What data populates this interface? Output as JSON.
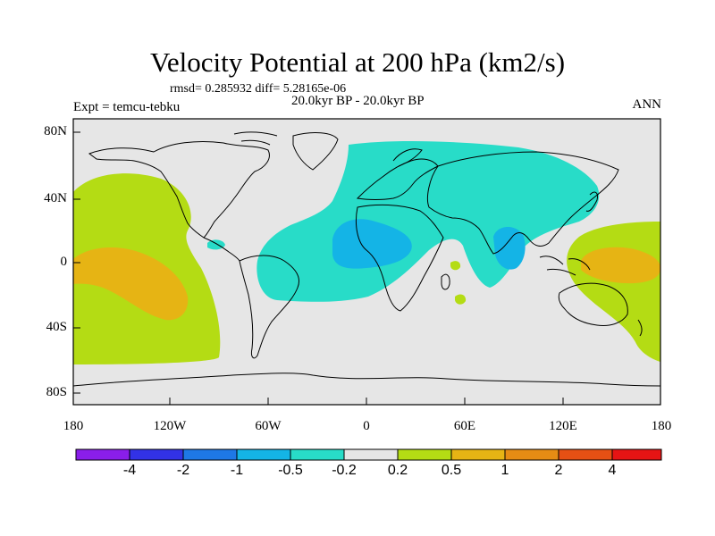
{
  "figure": {
    "title": "Velocity Potential at 200 hPa (km2/s)",
    "stats": "rmsd= 0.285932 diff= 5.28165e-06",
    "period": "20.0kyr BP - 20.0kyr BP",
    "experiment": "Expt = temcu-tebku",
    "season": "ANN"
  },
  "axes": {
    "lat_ticks": [
      "80N",
      "40N",
      "0",
      "40S",
      "80S"
    ],
    "lon_ticks": [
      "180",
      "120W",
      "60W",
      "0",
      "60E",
      "120E",
      "180"
    ],
    "lat_range": [
      -90,
      90
    ],
    "lon_range": [
      -180,
      180
    ]
  },
  "colorbar": {
    "colors": [
      "#8a1eea",
      "#3232e6",
      "#1e78e6",
      "#14b4e6",
      "#28dcc8",
      "#e6e6e6",
      "#b4dc14",
      "#e6b414",
      "#e68c14",
      "#e65014",
      "#e61414"
    ],
    "labels": [
      "-4",
      "-2",
      "-1",
      "-0.5",
      "-0.2",
      "0.2",
      "0.5",
      "1",
      "2",
      "4"
    ]
  },
  "palette": {
    "background": "#e6e6e6",
    "coast": "#000000"
  }
}
